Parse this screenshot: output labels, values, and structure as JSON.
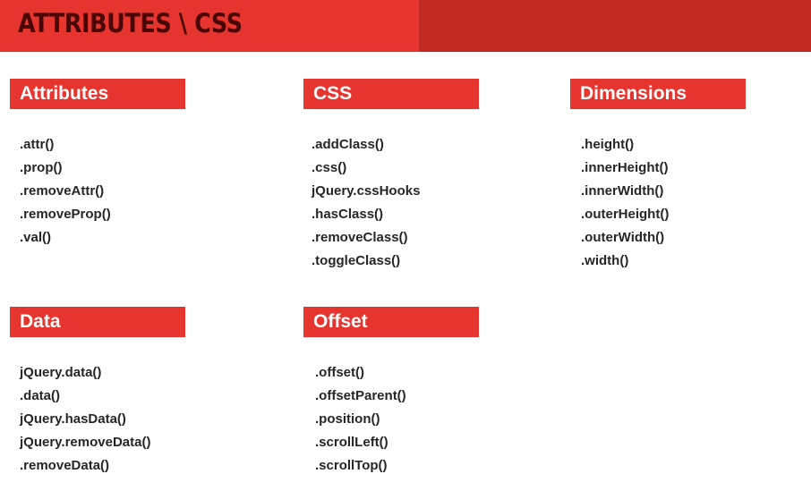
{
  "banner": {
    "title": "ATTRIBUTES \\ CSS",
    "color": "#e5352e",
    "dark_color": "#c12a22"
  },
  "sections": {
    "attributes": {
      "title": "Attributes",
      "items": [
        ".attr()",
        ".prop()",
        ".removeAttr()",
        ".removeProp()",
        ".val()"
      ]
    },
    "css": {
      "title": "CSS",
      "items": [
        ".addClass()",
        ".css()",
        "jQuery.cssHooks",
        ".hasClass()",
        ".removeClass()",
        ".toggleClass()"
      ]
    },
    "dimensions": {
      "title": "Dimensions",
      "items": [
        ".height()",
        ".innerHeight()",
        ".innerWidth()",
        ".outerHeight()",
        ".outerWidth()",
        ".width()"
      ]
    },
    "data": {
      "title": "Data",
      "items": [
        "jQuery.data()",
        ".data()",
        "jQuery.hasData()",
        "jQuery.removeData()",
        ".removeData()"
      ]
    },
    "offset": {
      "title": "Offset",
      "items": [
        ".offset()",
        ".offsetParent()",
        ".position()",
        ".scrollLeft()",
        ".scrollTop()"
      ]
    }
  }
}
